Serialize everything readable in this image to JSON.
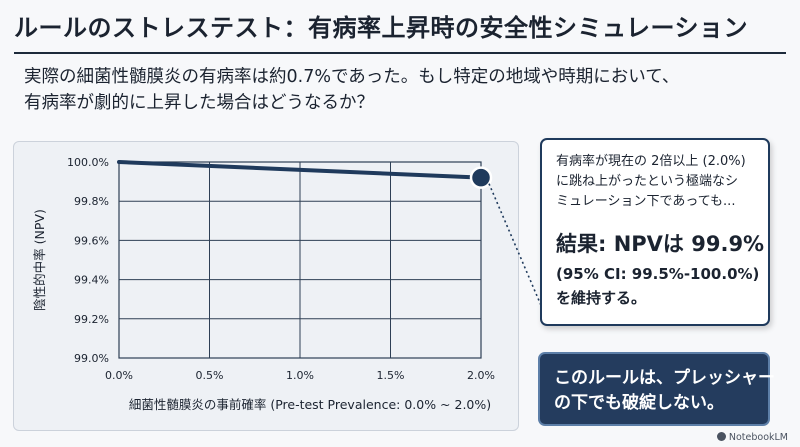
{
  "title": "ルールのストレステスト：有病率上昇時の安全性シミュレーション",
  "intro": {
    "line1": "実際の細菌性髄膜炎の有病率は約0.7%であった。もし特定の地域や時期において、",
    "line2": "有病率が劇的に上昇した場合はどうなるか？"
  },
  "chart_data": {
    "type": "line",
    "x": [
      0.0,
      2.0
    ],
    "series": [
      {
        "values": [
          100.0,
          99.92
        ]
      }
    ],
    "highlight_point": {
      "x": 2.0,
      "y": 99.92
    },
    "xlabel": "細菌性髄膜炎の事前確率 (Pre-test Prevalence: 0.0% ~ 2.0%)",
    "ylabel": "陰性的中率 (NPV)",
    "xlim": [
      0.0,
      2.0
    ],
    "ylim": [
      99.0,
      100.0
    ],
    "x_ticks": [
      0.0,
      0.5,
      1.0,
      1.5,
      2.0
    ],
    "x_tick_labels": [
      "0.0%",
      "0.5%",
      "1.0%",
      "1.5%",
      "2.0%"
    ],
    "y_ticks": [
      99.0,
      99.2,
      99.4,
      99.6,
      99.8,
      100.0
    ],
    "y_tick_labels": [
      "99.0%",
      "99.2%",
      "99.4%",
      "99.6%",
      "99.8%",
      "100.0%"
    ],
    "grid": true,
    "line_color": "#1f3a5c"
  },
  "callout": {
    "note_line1": "有病率が現在の 2倍以上 (2.0%)",
    "note_line2": "に跳ね上がったという極端なシ",
    "note_line3": "ミュレーション下であっても...",
    "headline": "結果: NPVは 99.9%",
    "detail_line1": "(95% CI: 99.5%-100.0%)",
    "detail_line2": "を維持する。"
  },
  "conclusion": {
    "line1": "このルールは、プレッシャー",
    "line2": "の下でも破綻しない。"
  },
  "brand": "NotebookLM",
  "colors": {
    "accent": "#1f3a5c",
    "conclusion_bg": "#243c5e",
    "grid": "#2e3f55"
  }
}
